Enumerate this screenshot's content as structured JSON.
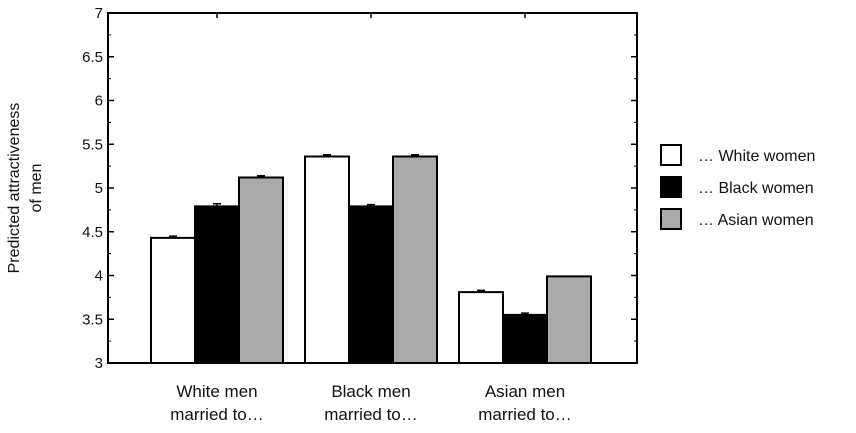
{
  "chart_data": {
    "type": "bar",
    "title": "",
    "xlabel": "",
    "ylabel_lines": [
      "Predicted attractiveness",
      "of men"
    ],
    "ylim": [
      3,
      7
    ],
    "yticks": [
      "3",
      "3.5",
      "4",
      "4.5",
      "5",
      "5.5",
      "6",
      "6.5",
      "7"
    ],
    "categories": [
      [
        "White men",
        "married to…"
      ],
      [
        "Black men",
        "married to…"
      ],
      [
        "Asian men",
        "married to…"
      ]
    ],
    "series": [
      {
        "name": "… White women",
        "color": "#ffffff",
        "values": [
          4.43,
          5.36,
          3.81
        ],
        "errors": [
          0.02,
          0.02,
          0.02
        ]
      },
      {
        "name": "… Black women",
        "color": "#000000",
        "values": [
          4.79,
          4.79,
          3.55
        ],
        "errors": [
          0.03,
          0.02,
          0.02
        ]
      },
      {
        "name": "… Asian women",
        "color": "#aaaaaa",
        "values": [
          5.12,
          5.36,
          3.99
        ],
        "errors": [
          0.02,
          0.02,
          0.0
        ]
      }
    ],
    "grid": false,
    "legend_position": "right"
  }
}
